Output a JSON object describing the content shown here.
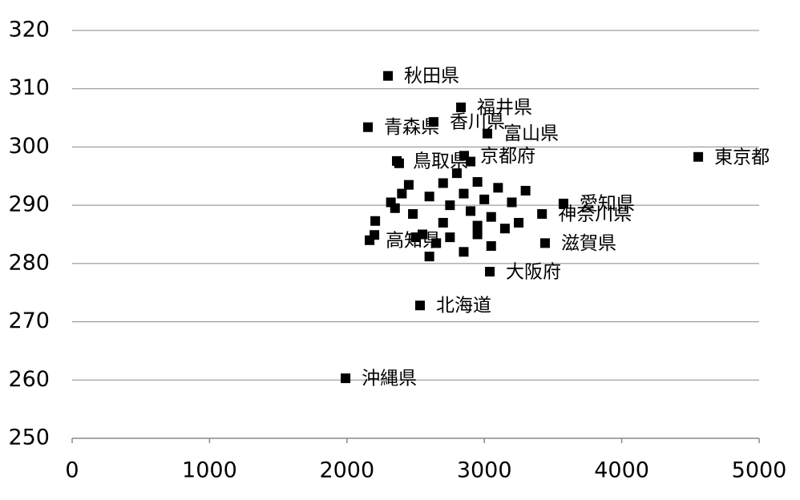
{
  "chart_data": {
    "type": "scatter",
    "series": [
      {
        "color": "#000000",
        "x": [
          2299,
          2830,
          2631,
          2153,
          3022,
          4557,
          2853,
          2363,
          3576,
          3442,
          3040,
          2532,
          1990,
          2165,
          3420,
          2380,
          2450,
          2400,
          2320,
          2350,
          2480,
          2600,
          2700,
          2750,
          2800,
          2850,
          2900,
          2950,
          3000,
          3050,
          3100,
          3200,
          3300,
          3150,
          2550,
          2650,
          2750,
          2850,
          2950,
          3050,
          3250,
          2600,
          2500,
          2700,
          2900,
          2950,
          2200,
          2206
        ],
        "values": [
          312.2,
          306.8,
          304.3,
          303.4,
          302.3,
          298.3,
          298.5,
          297.6,
          290.3,
          283.5,
          278.6,
          272.8,
          260.3,
          284.0,
          288.5,
          297.2,
          293.5,
          292,
          290.5,
          289.5,
          288.5,
          291.5,
          293.8,
          290,
          295.5,
          292,
          289,
          294,
          291,
          288,
          293,
          290.5,
          292.5,
          286,
          285,
          283.5,
          284.5,
          282,
          285,
          283,
          287,
          281.2,
          284.5,
          287,
          297.5,
          286.5,
          284.9,
          287.3
        ],
        "labels": [
          "秋田県",
          "福井県",
          "香川県",
          "青森県",
          "富山県",
          "東京都",
          "京都府",
          "鳥取県",
          "愛知県",
          "滋賀県",
          "大阪府",
          "北海道",
          "沖縄県",
          "高知県",
          "神奈川県",
          null,
          null,
          null,
          null,
          null,
          null,
          null,
          null,
          null,
          null,
          null,
          null,
          null,
          null,
          null,
          null,
          null,
          null,
          null,
          null,
          null,
          null,
          null,
          null,
          null,
          null,
          null,
          null,
          null,
          null,
          null,
          null,
          null
        ]
      }
    ],
    "xlim": [
      0,
      5000
    ],
    "xticks": [
      0,
      1000,
      2000,
      3000,
      4000,
      5000
    ],
    "ylim": [
      250,
      320
    ],
    "yticks": [
      250,
      260,
      270,
      280,
      290,
      300,
      310,
      320
    ],
    "grid": true
  }
}
